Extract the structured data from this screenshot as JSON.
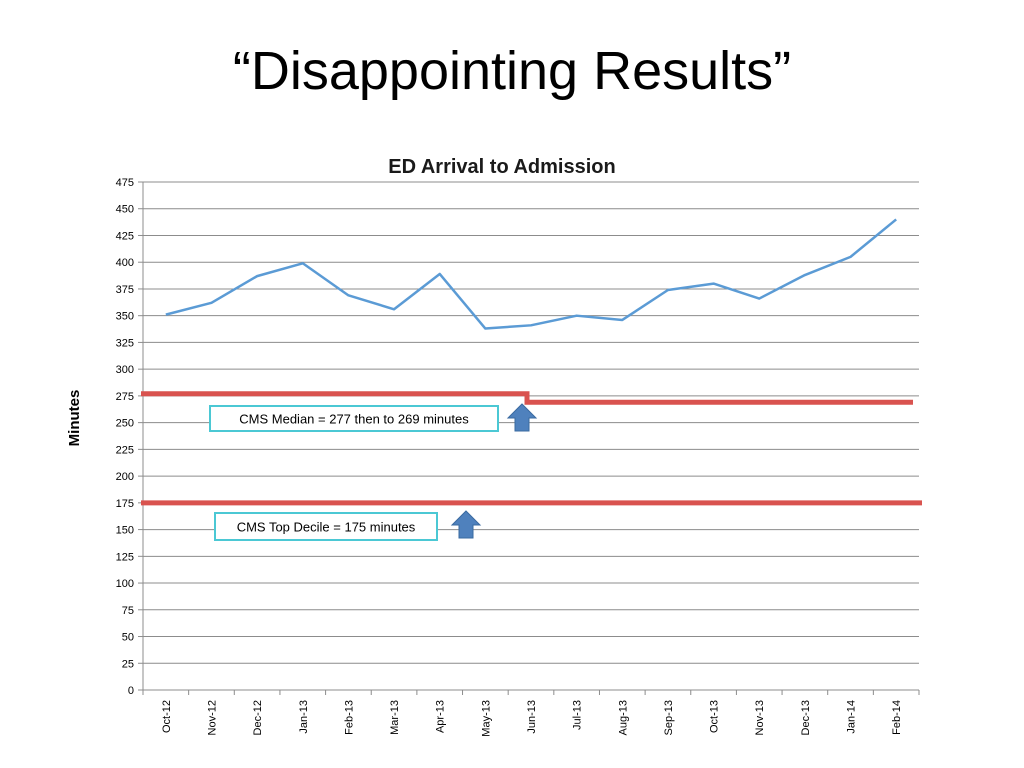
{
  "slide": {
    "title": "“Disappointing Results”"
  },
  "chart_data": {
    "type": "line",
    "title": "ED Arrival to Admission",
    "xlabel": "",
    "ylabel": "Minutes",
    "ylim": [
      0,
      475
    ],
    "ytick_step": 25,
    "grid": true,
    "categories": [
      "Oct-12",
      "Nov-12",
      "Dec-12",
      "Jan-13",
      "Feb-13",
      "Mar-13",
      "Apr-13",
      "May-13",
      "Jun-13",
      "Jul-13",
      "Aug-13",
      "Sep-13",
      "Oct-13",
      "Nov-13",
      "Dec-13",
      "Jan-14",
      "Feb-14"
    ],
    "series": [
      {
        "name": "ED Arrival to Admission",
        "color": "#5b9bd5",
        "values": [
          351,
          362,
          387,
          399,
          369,
          356,
          389,
          338,
          341,
          350,
          346,
          374,
          380,
          366,
          388,
          405,
          440
        ]
      }
    ],
    "reference_lines": [
      {
        "name": "CMS Median",
        "color": "#d9534f",
        "segments": [
          {
            "from": "start",
            "to": "Jun-13",
            "value": 277
          },
          {
            "from": "Jun-13",
            "to": "end",
            "value": 269
          }
        ]
      },
      {
        "name": "CMS Top Decile",
        "color": "#d9534f",
        "segments": [
          {
            "from": "start",
            "to": "end",
            "value": 175
          }
        ]
      }
    ],
    "annotations": [
      {
        "text": "CMS Median = 277 then to 269 minutes",
        "box_color": "#4bc8d4",
        "arrow_color": "#4f81bd"
      },
      {
        "text": "CMS Top Decile = 175 minutes",
        "box_color": "#4bc8d4",
        "arrow_color": "#4f81bd"
      }
    ]
  }
}
